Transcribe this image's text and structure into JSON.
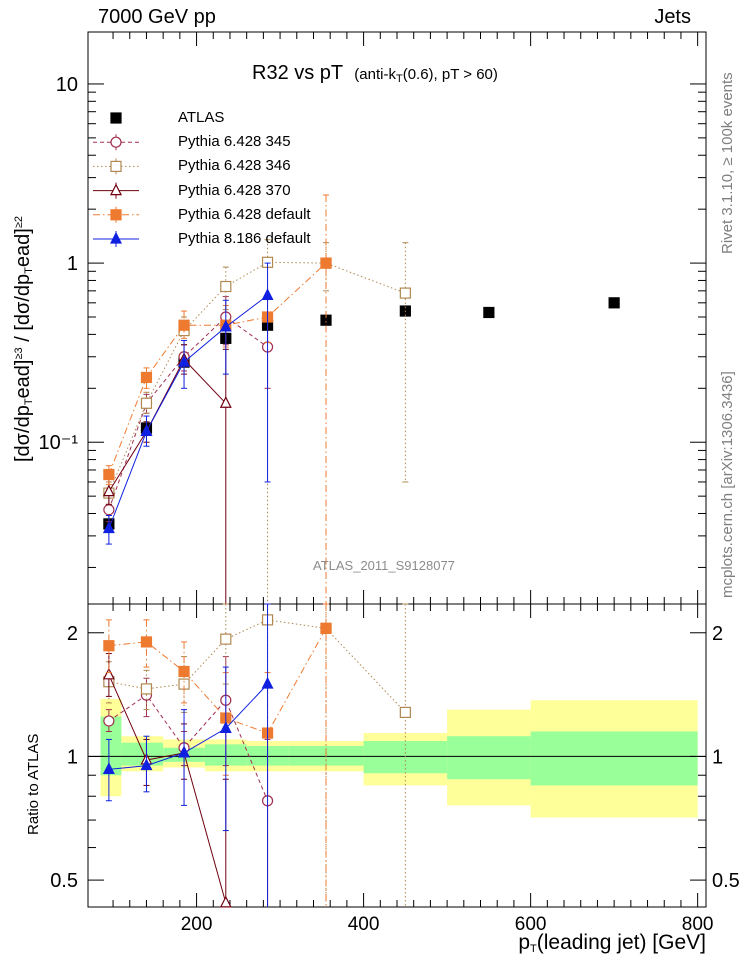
{
  "header": {
    "left": "7000 GeV pp",
    "right": "Jets",
    "side_top": "Rivet 3.1.10, ≥ 100k events",
    "side_bottom": "mcplots.cern.ch [arXiv:1306.3436]",
    "analysis": "ATLAS_2011_S9128077"
  },
  "chart_data": [
    {
      "type": "scatter",
      "title": "R32 vs pT",
      "subtitle_parts": [
        "(anti-k",
        "T",
        "(0.6), pT > 60)"
      ],
      "ylabel_parts": [
        "[dσ/dp",
        "T",
        "ead]",
        "≥3",
        " / [dσ/dp",
        "T",
        "ead]",
        "≥2"
      ],
      "xlabel_parts": [
        "p",
        "T",
        "(leading jet) [GeV]"
      ],
      "yscale": "log",
      "xlim": [
        70,
        810
      ],
      "ylim": [
        0.0125,
        19.5
      ],
      "ytick_labels": [
        "10",
        "1",
        "10⁻¹"
      ],
      "xtick_labels": [
        "200",
        "400",
        "600",
        "800"
      ],
      "legend_position": "top-left",
      "series": [
        {
          "name": "ATLAS",
          "color": "#000000",
          "marker": "square-filled",
          "line": "none",
          "points": [
            {
              "x": 95,
              "y": 0.035
            },
            {
              "x": 140,
              "y": 0.12
            },
            {
              "x": 185,
              "y": 0.28
            },
            {
              "x": 235,
              "y": 0.38
            },
            {
              "x": 285,
              "y": 0.45
            },
            {
              "x": 355,
              "y": 0.48
            },
            {
              "x": 450,
              "y": 0.54
            },
            {
              "x": 550,
              "y": 0.53
            },
            {
              "x": 700,
              "y": 0.6
            }
          ]
        },
        {
          "name": "Pythia 6.428 345",
          "color": "#a03050",
          "marker": "circle-open",
          "line": "dashed",
          "points": [
            {
              "x": 95,
              "y": 0.042,
              "lo": 0.036,
              "hi": 0.049
            },
            {
              "x": 140,
              "y": 0.165,
              "lo": 0.145,
              "hi": 0.185
            },
            {
              "x": 185,
              "y": 0.3,
              "lo": 0.25,
              "hi": 0.35
            },
            {
              "x": 235,
              "y": 0.5,
              "lo": 0.35,
              "hi": 0.65
            },
            {
              "x": 285,
              "y": 0.34,
              "lo": 0.2,
              "hi": 0.48
            }
          ]
        },
        {
          "name": "Pythia 6.428 346",
          "color": "#b08850",
          "marker": "square-open",
          "line": "dotted",
          "points": [
            {
              "x": 95,
              "y": 0.052,
              "lo": 0.045,
              "hi": 0.06
            },
            {
              "x": 140,
              "y": 0.165,
              "lo": 0.145,
              "hi": 0.19
            },
            {
              "x": 185,
              "y": 0.42,
              "lo": 0.35,
              "hi": 0.5
            },
            {
              "x": 235,
              "y": 0.74,
              "lo": 0.55,
              "hi": 0.95
            },
            {
              "x": 285,
              "y": 1.01,
              "lo": 0.0125,
              "hi": 1.35
            },
            {
              "x": 355,
              "y": 1.0,
              "lo": 0.7,
              "hi": 1.3
            },
            {
              "x": 450,
              "y": 0.68,
              "lo": 0.06,
              "hi": 1.3
            }
          ]
        },
        {
          "name": "Pythia 6.428 370",
          "color": "#700010",
          "marker": "triangle-open",
          "line": "solid",
          "points": [
            {
              "x": 95,
              "y": 0.053,
              "lo": 0.045,
              "hi": 0.062
            },
            {
              "x": 140,
              "y": 0.115,
              "lo": 0.1,
              "hi": 0.13
            },
            {
              "x": 185,
              "y": 0.29,
              "lo": 0.24,
              "hi": 0.35
            },
            {
              "x": 235,
              "y": 0.165,
              "lo": 0.0125,
              "hi": 0.33
            }
          ]
        },
        {
          "name": "Pythia 6.428 default",
          "color": "#ee7a30",
          "marker": "square-filled",
          "line": "dashdot",
          "points": [
            {
              "x": 95,
              "y": 0.066,
              "lo": 0.058,
              "hi": 0.074
            },
            {
              "x": 140,
              "y": 0.23,
              "lo": 0.2,
              "hi": 0.26
            },
            {
              "x": 185,
              "y": 0.45,
              "lo": 0.38,
              "hi": 0.54
            },
            {
              "x": 235,
              "y": 0.45,
              "lo": 0.34,
              "hi": 0.58
            },
            {
              "x": 285,
              "y": 0.5,
              "lo": 0.36,
              "hi": 0.66
            },
            {
              "x": 355,
              "y": 1.0,
              "lo": 0.0125,
              "hi": 2.4
            }
          ]
        },
        {
          "name": "Pythia 8.186 default",
          "color": "#1020e0",
          "marker": "triangle-filled",
          "line": "solid",
          "points": [
            {
              "x": 95,
              "y": 0.033,
              "lo": 0.027,
              "hi": 0.039
            },
            {
              "x": 140,
              "y": 0.115,
              "lo": 0.095,
              "hi": 0.14
            },
            {
              "x": 185,
              "y": 0.28,
              "lo": 0.2,
              "hi": 0.37
            },
            {
              "x": 235,
              "y": 0.44,
              "lo": 0.24,
              "hi": 0.62
            },
            {
              "x": 285,
              "y": 0.66,
              "lo": 0.06,
              "hi": 1.0
            }
          ]
        }
      ]
    },
    {
      "type": "scatter",
      "ylabel": "Ratio to ATLAS",
      "yscale": "log",
      "xlim": [
        70,
        810
      ],
      "ylim": [
        0.43,
        2.35
      ],
      "ytick_labels": [
        "2",
        "1",
        "0.5"
      ],
      "reference_line": 1,
      "uncertainty_bands": [
        {
          "x0": 85,
          "x1": 110,
          "inner": [
            0.9,
            1.25
          ],
          "outer": [
            0.8,
            1.38
          ]
        },
        {
          "x0": 110,
          "x1": 160,
          "inner": [
            0.95,
            1.08
          ],
          "outer": [
            0.92,
            1.12
          ]
        },
        {
          "x0": 160,
          "x1": 210,
          "inner": [
            0.97,
            1.05
          ],
          "outer": [
            0.94,
            1.1
          ]
        },
        {
          "x0": 210,
          "x1": 260,
          "inner": [
            0.95,
            1.07
          ],
          "outer": [
            0.92,
            1.1
          ]
        },
        {
          "x0": 260,
          "x1": 310,
          "inner": [
            0.95,
            1.06
          ],
          "outer": [
            0.92,
            1.09
          ]
        },
        {
          "x0": 310,
          "x1": 400,
          "inner": [
            0.95,
            1.06
          ],
          "outer": [
            0.92,
            1.09
          ]
        },
        {
          "x0": 400,
          "x1": 500,
          "inner": [
            0.91,
            1.09
          ],
          "outer": [
            0.85,
            1.14
          ]
        },
        {
          "x0": 500,
          "x1": 600,
          "inner": [
            0.88,
            1.12
          ],
          "outer": [
            0.76,
            1.3
          ]
        },
        {
          "x0": 600,
          "x1": 800,
          "inner": [
            0.85,
            1.15
          ],
          "outer": [
            0.71,
            1.37
          ]
        }
      ],
      "series": [
        {
          "name": "Pythia 6.428 345",
          "color": "#a03050",
          "marker": "circle-open",
          "line": "dashed",
          "points": [
            {
              "x": 95,
              "y": 1.22,
              "lo": 1.15,
              "hi": 1.3
            },
            {
              "x": 140,
              "y": 1.41,
              "lo": 1.25,
              "hi": 1.55
            },
            {
              "x": 185,
              "y": 1.05,
              "lo": 0.95,
              "hi": 1.15
            },
            {
              "x": 235,
              "y": 1.37,
              "lo": 0.95,
              "hi": 1.75
            },
            {
              "x": 285,
              "y": 0.78,
              "lo": 0.43,
              "hi": 1.1
            }
          ]
        },
        {
          "name": "Pythia 6.428 346",
          "color": "#b08850",
          "marker": "square-open",
          "line": "dotted",
          "points": [
            {
              "x": 95,
              "y": 1.52,
              "lo": 1.35,
              "hi": 1.7
            },
            {
              "x": 140,
              "y": 1.46,
              "lo": 1.3,
              "hi": 1.62
            },
            {
              "x": 185,
              "y": 1.5,
              "lo": 1.28,
              "hi": 1.75
            },
            {
              "x": 235,
              "y": 1.93,
              "lo": 1.5,
              "hi": 2.35
            },
            {
              "x": 285,
              "y": 2.15,
              "lo": 0.43,
              "hi": 2.35
            },
            {
              "x": 355,
              "y": 2.05,
              "lo": 0.43,
              "hi": 2.35
            },
            {
              "x": 450,
              "y": 1.28,
              "lo": 0.43,
              "hi": 2.35
            }
          ]
        },
        {
          "name": "Pythia 6.428 370",
          "color": "#700010",
          "marker": "triangle-open",
          "line": "solid",
          "points": [
            {
              "x": 95,
              "y": 1.58,
              "lo": 1.4,
              "hi": 1.78
            },
            {
              "x": 140,
              "y": 0.98,
              "lo": 0.85,
              "hi": 1.1
            },
            {
              "x": 185,
              "y": 1.02,
              "lo": 0.88,
              "hi": 1.2
            },
            {
              "x": 235,
              "y": 0.44,
              "lo": 0.43,
              "hi": 0.88
            }
          ]
        },
        {
          "name": "Pythia 6.428 default",
          "color": "#ee7a30",
          "marker": "square-filled",
          "line": "dashdot",
          "points": [
            {
              "x": 95,
              "y": 1.86,
              "lo": 1.6,
              "hi": 2.15
            },
            {
              "x": 140,
              "y": 1.9,
              "lo": 1.65,
              "hi": 2.15
            },
            {
              "x": 185,
              "y": 1.61,
              "lo": 1.35,
              "hi": 1.9
            },
            {
              "x": 235,
              "y": 1.24,
              "lo": 0.9,
              "hi": 1.6
            },
            {
              "x": 285,
              "y": 1.14,
              "lo": 0.43,
              "hi": 1.6
            },
            {
              "x": 355,
              "y": 2.05,
              "lo": 0.43,
              "hi": 2.35
            }
          ]
        },
        {
          "name": "Pythia 8.186 default",
          "color": "#1020e0",
          "marker": "triangle-filled",
          "line": "solid",
          "points": [
            {
              "x": 95,
              "y": 0.93,
              "lo": 0.78,
              "hi": 1.1
            },
            {
              "x": 140,
              "y": 0.95,
              "lo": 0.82,
              "hi": 1.12
            },
            {
              "x": 185,
              "y": 1.02,
              "lo": 0.76,
              "hi": 1.3
            },
            {
              "x": 235,
              "y": 1.17,
              "lo": 0.66,
              "hi": 1.65
            },
            {
              "x": 285,
              "y": 1.5,
              "lo": 0.43,
              "hi": 2.35
            }
          ]
        }
      ]
    }
  ]
}
